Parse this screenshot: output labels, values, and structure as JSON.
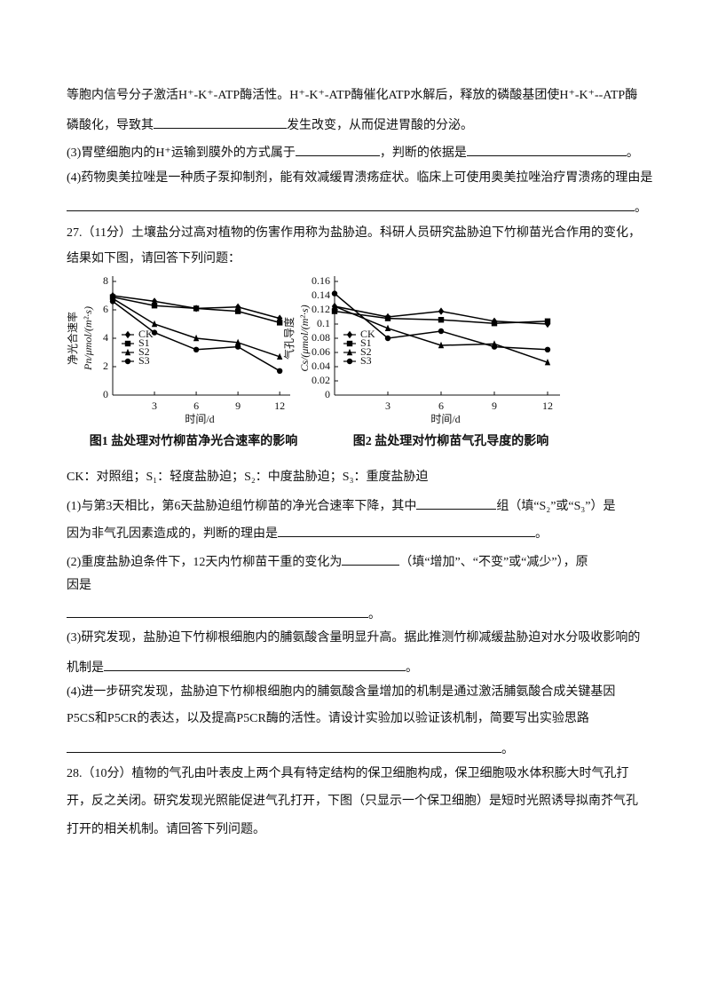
{
  "document": {
    "lines": [
      [
        "等胞内信号分子激活H⁺-K⁺-ATP酶活性。H⁺-K⁺-ATP酶催化ATP水解后，释放的磷酸基团使H⁺-K⁺--ATP酶"
      ],
      [
        "磷酸化，导致其",
        "发生改变，从而促进胃酸的分泌。"
      ],
      [
        "(3)胃壁细胞内的H⁺运输到膜外的方式属于",
        "，判断的依据是",
        "。"
      ],
      [
        "(4)药物奥美拉唑是一种质子泵抑制剂，能有效减缓胃溃疡症状。临床上可使用奥美拉唑治疗胃溃疡的理由是"
      ],
      [
        "。"
      ],
      [
        "27.（11分）土壤盐分过高对植物的伤害作用称为盐胁迫。科研人员研究盐胁迫下竹柳苗光合作用的变化，"
      ],
      [
        "结果如下图，请回答下列问题："
      ],
      [
        "CK：对照组；S₁：轻度盐胁迫；S₂：中度盐胁迫；S₃：重度盐胁迫"
      ],
      [
        "(1)与第3天相比，第6天盐胁迫组竹柳苗的净光合速率下降，其中",
        "组（填“S₂”或“S₃”）是"
      ],
      [
        "因为非气孔因素造成的，判断的理由是",
        "。"
      ],
      [
        "(2)重度盐胁迫条件下，12天内竹柳苗干重的变化为",
        "（填“增加”、“不变”或“减少”），原"
      ],
      [
        "因是"
      ],
      [
        "。"
      ],
      [
        "(3)研究发现，盐胁迫下竹柳根细胞内的脯氨酸含量明显升高。据此推测竹柳减缓盐胁迫对水分吸收影响的"
      ],
      [
        "机制是",
        "。"
      ],
      [
        "(4)进一步研究发现，盐胁迫下竹柳根细胞内的脯氨酸含量增加的机制是通过激活脯氨酸合成关键基因"
      ],
      [
        "P5CS和P5CR的表达，以及提高P5CR酶的活性。请设计实验加以验证该机制，简要写出实验思路"
      ],
      [
        "。"
      ],
      [
        "28.（10分）植物的气孔由叶表皮上两个具有特定结构的保卫细胞构成，保卫细胞吸水体积膨大时气孔打"
      ],
      [
        "开，反之关闭。研究发现光照能促进气孔打开，下图（只显示一个保卫细胞）是短时光照诱导拟南芥气孔"
      ],
      [
        "打开的相关机制。请回答下列问题。"
      ]
    ]
  },
  "chart_data": [
    {
      "type": "line",
      "title": "图1  盐处理对竹柳苗净光合速率的影响",
      "ylabel": [
        "净光合速率",
        "Pn/μmol/(m²·s)"
      ],
      "xlabel": "时间/d",
      "x": [
        0,
        3,
        6,
        9,
        12
      ],
      "xlim": [
        0,
        12.5
      ],
      "xticks": [
        3,
        6,
        9,
        12
      ],
      "ylim": [
        0,
        8
      ],
      "yticks": [
        0,
        2,
        4,
        6,
        8
      ],
      "legend": "lower left",
      "series": [
        {
          "name": "CK",
          "color": "#000000",
          "marker": "diamond",
          "values": [
            7.0,
            6.6,
            6.1,
            6.2,
            5.4
          ]
        },
        {
          "name": "S1",
          "color": "#000000",
          "marker": "square",
          "values": [
            6.9,
            6.3,
            6.1,
            5.9,
            5.1
          ]
        },
        {
          "name": "S2",
          "color": "#000000",
          "marker": "triangle",
          "values": [
            6.8,
            5.0,
            4.0,
            3.7,
            2.7
          ]
        },
        {
          "name": "S3",
          "color": "#000000",
          "marker": "circle",
          "values": [
            6.6,
            4.4,
            3.2,
            3.4,
            1.7
          ]
        }
      ]
    },
    {
      "type": "line",
      "title": "图2  盐处理对竹柳苗气孔导度的影响",
      "ylabel": [
        "气孔导度",
        "Cs/(μmol/(m²·s)"
      ],
      "xlabel": "时间/d",
      "x": [
        0,
        3,
        6,
        9,
        12
      ],
      "xlim": [
        0,
        12.5
      ],
      "xticks": [
        3,
        6,
        9,
        12
      ],
      "ylim": [
        0,
        0.16
      ],
      "yticks": [
        0,
        0.02,
        0.04,
        0.06,
        0.08,
        0.1,
        0.12,
        0.14,
        0.16
      ],
      "legend": "lower left",
      "series": [
        {
          "name": "CK",
          "color": "#000000",
          "marker": "diamond",
          "values": [
            0.125,
            0.11,
            0.118,
            0.104,
            0.1
          ]
        },
        {
          "name": "S1",
          "color": "#000000",
          "marker": "square",
          "values": [
            0.118,
            0.108,
            0.106,
            0.101,
            0.104
          ]
        },
        {
          "name": "S2",
          "color": "#000000",
          "marker": "triangle",
          "values": [
            0.125,
            0.094,
            0.07,
            0.072,
            0.046
          ]
        },
        {
          "name": "S3",
          "color": "#000000",
          "marker": "circle",
          "values": [
            0.143,
            0.08,
            0.09,
            0.068,
            0.064
          ]
        }
      ]
    }
  ]
}
